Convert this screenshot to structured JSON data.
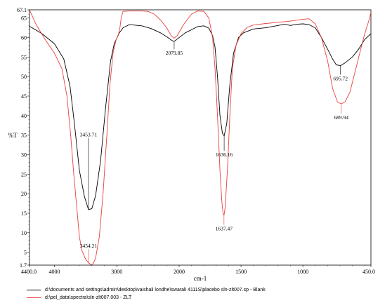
{
  "chart_data": {
    "type": "line",
    "title": "",
    "xlabel": "cm-1",
    "ylabel": "%T",
    "xlim": [
      4400.0,
      450.0
    ],
    "ylim": [
      1.7,
      67.1
    ],
    "x_ticks": [
      "4400.0",
      "4000",
      "3000",
      "2000",
      "1500",
      "1000",
      "450.0"
    ],
    "y_ticks": [
      "67.1",
      "65",
      "60",
      "55",
      "50",
      "45",
      "40",
      "35",
      "30",
      "25",
      "20",
      "15",
      "10",
      "5",
      "1.7"
    ],
    "grid": false,
    "legend_position": "bottom",
    "series": [
      {
        "name": "d:\\documents and settings\\admin\\desktop\\vaishali londhe\\swarali 4111S\\placebo sln-zlt007.sp - Blank",
        "color": "#000000",
        "points": [
          [
            4400,
            62.9
          ],
          [
            4200,
            61.0
          ],
          [
            4000,
            58.4
          ],
          [
            3850,
            54.5
          ],
          [
            3750,
            47.5
          ],
          [
            3680,
            38.0
          ],
          [
            3600,
            26.0
          ],
          [
            3520,
            19.3
          ],
          [
            3454,
            15.9
          ],
          [
            3400,
            16.2
          ],
          [
            3340,
            19.5
          ],
          [
            3260,
            28.5
          ],
          [
            3180,
            42.0
          ],
          [
            3100,
            54.0
          ],
          [
            3040,
            58.5
          ],
          [
            3000,
            59.8
          ],
          [
            2960,
            61.2
          ],
          [
            2930,
            61.8
          ],
          [
            2900,
            62.5
          ],
          [
            2800,
            63.3
          ],
          [
            2600,
            63.0
          ],
          [
            2450,
            62.3
          ],
          [
            2300,
            61.2
          ],
          [
            2200,
            60.2
          ],
          [
            2120,
            59.3
          ],
          [
            2080,
            59.0
          ],
          [
            2040,
            59.5
          ],
          [
            1950,
            61.2
          ],
          [
            1850,
            62.8
          ],
          [
            1800,
            63.0
          ],
          [
            1760,
            62.4
          ],
          [
            1730,
            60.5
          ],
          [
            1710,
            57.5
          ],
          [
            1690,
            50.0
          ],
          [
            1670,
            40.0
          ],
          [
            1650,
            35.5
          ],
          [
            1636,
            34.8
          ],
          [
            1615,
            38.0
          ],
          [
            1590,
            48.0
          ],
          [
            1560,
            56.0
          ],
          [
            1520,
            60.0
          ],
          [
            1480,
            61.2
          ],
          [
            1400,
            62.2
          ],
          [
            1300,
            62.5
          ],
          [
            1250,
            62.8
          ],
          [
            1200,
            63.1
          ],
          [
            1150,
            63.4
          ],
          [
            1100,
            63.1
          ],
          [
            1050,
            63.4
          ],
          [
            1000,
            63.5
          ],
          [
            950,
            63.3
          ],
          [
            900,
            62.5
          ],
          [
            850,
            60.0
          ],
          [
            800,
            57.0
          ],
          [
            760,
            54.5
          ],
          [
            730,
            53.0
          ],
          [
            696,
            52.8
          ],
          [
            660,
            53.5
          ],
          [
            600,
            55.0
          ],
          [
            550,
            57.0
          ],
          [
            500,
            59.5
          ],
          [
            450,
            61.0
          ]
        ]
      },
      {
        "name": "d:\\pel_data\\spectra\\sln-zlt007.003 - ZLT",
        "color": "#e8413c",
        "points": [
          [
            4400,
            67.1
          ],
          [
            4300,
            63.5
          ],
          [
            4150,
            59.5
          ],
          [
            4000,
            56.0
          ],
          [
            3880,
            52.0
          ],
          [
            3800,
            45.0
          ],
          [
            3740,
            35.0
          ],
          [
            3690,
            25.0
          ],
          [
            3640,
            16.0
          ],
          [
            3600,
            9.0
          ],
          [
            3560,
            5.5
          ],
          [
            3500,
            3.2
          ],
          [
            3454,
            2.3
          ],
          [
            3420,
            1.9
          ],
          [
            3380,
            2.0
          ],
          [
            3340,
            3.5
          ],
          [
            3280,
            9.0
          ],
          [
            3220,
            20.0
          ],
          [
            3160,
            35.0
          ],
          [
            3110,
            48.0
          ],
          [
            3060,
            56.0
          ],
          [
            3010,
            59.5
          ],
          [
            2970,
            61.0
          ],
          [
            2950,
            62.5
          ],
          [
            2930,
            65.0
          ],
          [
            2900,
            66.7
          ],
          [
            2800,
            66.8
          ],
          [
            2600,
            66.8
          ],
          [
            2500,
            66.7
          ],
          [
            2400,
            66.0
          ],
          [
            2300,
            64.5
          ],
          [
            2200,
            62.5
          ],
          [
            2130,
            60.5
          ],
          [
            2080,
            59.8
          ],
          [
            2030,
            60.5
          ],
          [
            1960,
            63.5
          ],
          [
            1900,
            66.0
          ],
          [
            1850,
            66.8
          ],
          [
            1800,
            66.7
          ],
          [
            1760,
            65.0
          ],
          [
            1730,
            60.0
          ],
          [
            1710,
            52.0
          ],
          [
            1690,
            40.0
          ],
          [
            1670,
            26.0
          ],
          [
            1655,
            18.0
          ],
          [
            1645,
            15.0
          ],
          [
            1637,
            14.5
          ],
          [
            1628,
            16.5
          ],
          [
            1610,
            26.0
          ],
          [
            1590,
            40.0
          ],
          [
            1570,
            52.0
          ],
          [
            1540,
            58.0
          ],
          [
            1500,
            61.0
          ],
          [
            1450,
            62.6
          ],
          [
            1400,
            63.2
          ],
          [
            1300,
            63.6
          ],
          [
            1200,
            63.9
          ],
          [
            1100,
            64.2
          ],
          [
            1000,
            64.7
          ],
          [
            950,
            64.8
          ],
          [
            900,
            63.5
          ],
          [
            850,
            60.0
          ],
          [
            800,
            54.0
          ],
          [
            760,
            47.0
          ],
          [
            720,
            43.5
          ],
          [
            690,
            43.0
          ],
          [
            660,
            43.5
          ],
          [
            620,
            46.0
          ],
          [
            580,
            51.0
          ],
          [
            540,
            56.0
          ],
          [
            500,
            61.0
          ],
          [
            460,
            65.0
          ],
          [
            450,
            66.5
          ]
        ]
      }
    ],
    "annotations": [
      {
        "text": "3453.71",
        "x": 3453.71,
        "y": 15.9,
        "series": 0,
        "label_y": 34.3
      },
      {
        "text": "3454.21",
        "x": 3454.21,
        "y": 2.3,
        "series": 1,
        "label_y": 5.8
      },
      {
        "text": "2079.85",
        "x": 2079.85,
        "y": 59.0,
        "series": 0,
        "label_y": 57.0
      },
      {
        "text": "1636.16",
        "x": 1636.16,
        "y": 34.8,
        "series": 0,
        "label_y": 31.0
      },
      {
        "text": "1637.47",
        "x": 1637.47,
        "y": 14.5,
        "series": 1,
        "label_y": 12.0
      },
      {
        "text": "695.72",
        "x": 695.72,
        "y": 52.8,
        "series": 0,
        "label_y": 50.5
      },
      {
        "text": "689.94",
        "x": 689.94,
        "y": 43.0,
        "series": 1,
        "label_y": 40.5
      }
    ]
  }
}
